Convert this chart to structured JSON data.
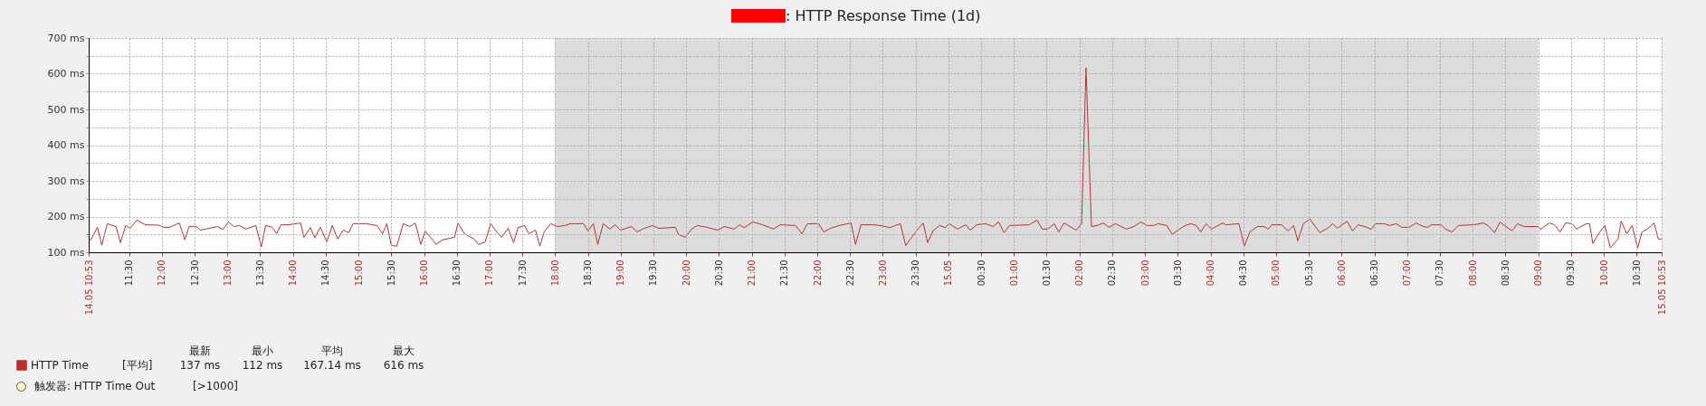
{
  "chart_data": {
    "type": "line",
    "title": ": HTTP Response Time (1d)",
    "x": [
      "--05-14T10:53",
      "--05-14T10:55",
      "--05-14T11:01",
      "--05-14T11:05",
      "--05-14T11:10",
      "--05-14T11:18",
      "--05-14T11:22",
      "--05-14T11:27",
      "--05-14T11:31",
      "--05-14T11:37",
      "--05-14T11:45",
      "--05-14T11:57",
      "--05-14T12:02",
      "--05-14T12:07",
      "--05-14T12:16",
      "--05-14T12:21",
      "--05-14T12:25",
      "--05-14T12:32",
      "--05-14T12:35",
      "--05-14T12:51",
      "--05-14T12:56",
      "--05-14T13:01",
      "--05-14T13:06",
      "--05-14T13:11",
      "--05-14T13:17",
      "--05-14T13:26",
      "--05-14T13:31",
      "--05-14T13:35",
      "--05-14T13:41",
      "--05-14T13:45",
      "--05-14T13:49",
      "--05-14T13:56",
      "--05-14T14:07",
      "--05-14T14:10",
      "--05-14T14:16",
      "--05-14T14:20",
      "--05-14T14:25",
      "--05-14T14:31",
      "--05-14T14:36",
      "--05-14T14:41",
      "--05-14T14:46",
      "--05-14T14:51",
      "--05-14T14:55",
      "--05-14T15:07",
      "--05-14T15:17",
      "--05-14T15:22",
      "--05-14T15:26",
      "--05-14T15:30",
      "--05-14T15:35",
      "--05-14T15:41",
      "--05-14T15:47",
      "--05-14T15:52",
      "--05-14T15:57",
      "--05-14T16:01",
      "--05-14T16:06",
      "--05-14T16:11",
      "--05-14T16:17",
      "--05-14T16:28",
      "--05-14T16:31",
      "--05-14T16:37",
      "--05-14T16:46",
      "--05-14T16:50",
      "--05-14T16:56",
      "--05-14T17:01",
      "--05-14T17:07",
      "--05-14T17:11",
      "--05-14T17:17",
      "--05-14T17:22",
      "--05-14T17:26",
      "--05-14T17:32",
      "--05-14T17:36",
      "--05-14T17:42",
      "--05-14T17:46",
      "--05-14T17:50",
      "--05-14T17:56",
      "--05-14T18:02",
      "--05-14T18:09",
      "--05-14T18:14",
      "--05-14T18:26",
      "--05-14T18:30",
      "--05-14T18:35",
      "--05-14T18:39",
      "--05-14T18:44",
      "--05-14T18:50",
      "--05-14T18:55",
      "--05-14T19:00",
      "--05-14T19:10",
      "--05-14T19:15",
      "--05-14T19:20",
      "--05-14T19:29",
      "--05-14T19:35",
      "--05-14T19:50",
      "--05-14T19:53",
      "--05-14T19:59",
      "--05-14T20:05",
      "--05-14T20:10",
      "--05-14T20:19",
      "--05-14T20:29",
      "--05-14T20:35",
      "--05-14T20:44",
      "--05-14T20:49",
      "--05-14T20:53",
      "--05-14T21:01",
      "--05-14T21:10",
      "--05-14T21:20",
      "--05-14T21:26",
      "--05-14T21:40",
      "--05-14T21:46",
      "--05-14T21:51",
      "--05-14T22:01",
      "--05-14T22:06",
      "--05-14T22:12",
      "--05-14T22:20",
      "--05-14T22:31",
      "--05-14T22:35",
      "--05-14T22:40",
      "--05-14T22:51",
      "--05-14T22:58",
      "--05-14T23:06",
      "--05-14T23:16",
      "--05-14T23:21",
      "--05-14T23:30",
      "--05-14T23:37",
      "--05-14T23:41",
      "--05-14T23:46",
      "--05-14T23:52",
      "--05-14T23:57",
      "--05-15T00:01",
      "--05-15T00:08",
      "--05-15T00:16",
      "--05-15T00:20",
      "--05-15T00:26",
      "--05-15T00:34",
      "--05-15T00:41",
      "--05-15T00:46",
      "--05-15T00:51",
      "--05-15T00:56",
      "--05-15T01:14",
      "--05-15T01:21",
      "--05-15T01:26",
      "--05-15T01:31",
      "--05-15T01:37",
      "--05-15T01:41",
      "--05-15T01:46",
      "--05-15T01:57",
      "--05-15T02:02",
      "--05-15T02:06",
      "--05-15T02:11",
      "--05-15T02:16",
      "--05-15T02:22",
      "--05-15T02:27",
      "--05-15T02:33",
      "--05-15T02:43",
      "--05-15T02:50",
      "--05-15T02:56",
      "--05-15T03:02",
      "--05-15T03:08",
      "--05-15T03:12",
      "--05-15T03:20",
      "--05-15T03:25",
      "--05-15T03:30",
      "--05-15T03:37",
      "--05-15T03:42",
      "--05-15T03:47",
      "--05-15T03:51",
      "--05-15T03:56",
      "--05-15T04:01",
      "--05-15T04:11",
      "--05-15T04:14",
      "--05-15T04:26",
      "--05-15T04:31",
      "--05-15T04:36",
      "--05-15T04:43",
      "--05-15T04:49",
      "--05-15T04:53",
      "--05-15T04:56",
      "--05-15T05:05",
      "--05-15T05:11",
      "--05-15T05:16",
      "--05-15T05:20",
      "--05-15T05:25",
      "--05-15T05:31",
      "--05-15T05:40",
      "--05-15T05:47",
      "--05-15T05:52",
      "--05-15T05:56",
      "--05-15T06:05",
      "--05-15T06:10",
      "--05-15T06:15",
      "--05-15T06:23",
      "--05-15T06:27",
      "--05-15T06:31",
      "--05-15T06:39",
      "--05-15T06:44",
      "--05-15T06:50",
      "--05-15T06:55",
      "--05-15T07:02",
      "--05-15T07:08",
      "--05-15T07:15",
      "--05-15T07:19",
      "--05-15T07:22",
      "--05-15T07:31",
      "--05-15T07:35",
      "--05-15T07:41",
      "--05-15T07:47",
      "--05-15T08:01",
      "--05-15T08:10",
      "--05-15T08:14",
      "--05-15T08:20",
      "--05-15T08:25",
      "--05-15T08:36",
      "--05-15T08:41",
      "--05-15T08:47",
      "--05-15T09:00",
      "--05-15T09:02",
      "--05-15T09:10",
      "--05-15T09:15",
      "--05-15T09:20",
      "--05-15T09:25",
      "--05-15T09:31",
      "--05-15T09:35",
      "--05-15T09:44",
      "--05-15T09:47",
      "--05-15T09:50",
      "--05-15T09:56",
      "--05-15T10:01",
      "--05-15T10:06",
      "--05-15T10:13",
      "--05-15T10:16",
      "--05-15T10:21",
      "--05-15T10:26",
      "--05-15T10:31",
      "--05-15T10:35",
      "--05-15T10:40",
      "--05-15T10:46",
      "--05-15T10:50",
      "--05-15T10:53"
    ],
    "series": [
      {
        "name": "HTTP Time",
        "color": "#b8312f",
        "values": [
          135,
          135,
          170,
          120,
          180,
          172,
          127,
          175,
          167,
          190,
          177,
          176,
          170,
          170,
          182,
          135,
          173,
          172,
          162,
          172,
          164,
          185,
          172,
          175,
          165,
          175,
          115,
          175,
          170,
          152,
          177,
          177,
          182,
          142,
          169,
          140,
          170,
          129,
          175,
          137,
          162,
          155,
          180,
          180,
          175,
          152,
          180,
          119,
          117,
          180,
          172,
          182,
          122,
          159,
          142,
          122,
          135,
          142,
          182,
          152,
          137,
          122,
          129,
          180,
          155,
          142,
          167,
          127,
          169,
          175,
          152,
          162,
          117,
          157,
          180,
          172,
          175,
          180,
          180,
          160,
          180,
          122,
          180,
          165,
          177,
          162,
          172,
          157,
          165,
          175,
          167,
          170,
          150,
          142,
          165,
          175,
          170,
          162,
          172,
          165,
          177,
          169,
          185,
          177,
          165,
          177,
          175,
          152,
          180,
          180,
          157,
          167,
          175,
          182,
          122,
          177,
          177,
          175,
          169,
          180,
          119,
          157,
          182,
          127,
          160,
          175,
          169,
          180,
          165,
          177,
          162,
          177,
          180,
          172,
          185,
          155,
          175,
          177,
          190,
          165,
          165,
          180,
          157,
          182,
          162,
          180,
          616,
          172,
          175,
          182,
          170,
          180,
          165,
          172,
          185,
          175,
          175,
          180,
          175,
          150,
          162,
          175,
          180,
          175,
          157,
          180,
          165,
          182,
          177,
          180,
          117,
          157,
          172,
          172,
          165,
          177,
          177,
          160,
          175,
          132,
          180,
          193,
          155,
          167,
          180,
          167,
          187,
          160,
          177,
          170,
          164,
          180,
          180,
          175,
          180,
          170,
          170,
          182,
          172,
          170,
          177,
          177,
          165,
          157,
          175,
          177,
          182,
          175,
          155,
          184,
          160,
          180,
          172,
          172,
          164,
          182,
          177,
          157,
          182,
          180,
          165,
          180,
          180,
          125,
          155,
          175,
          112,
          137,
          187,
          152,
          175,
          112,
          157,
          165,
          182,
          137,
          137
        ]
      }
    ],
    "xlim": [
      "--05-14T10:53",
      "--05-15T10:53"
    ],
    "xticks": [
      {
        "value": "--05-14T10:53",
        "label": "14.05 10:53"
      },
      {
        "value": "--05-14T11:30",
        "label": "11:30"
      },
      {
        "value": "--05-14T12:00",
        "label": "12:00"
      },
      {
        "value": "--05-14T12:30",
        "label": "12:30"
      },
      {
        "value": "--05-14T13:00",
        "label": "13:00"
      },
      {
        "value": "--05-14T13:30",
        "label": "13:30"
      },
      {
        "value": "--05-14T14:00",
        "label": "14:00"
      },
      {
        "value": "--05-14T14:30",
        "label": "14:30"
      },
      {
        "value": "--05-14T15:00",
        "label": "15:00"
      },
      {
        "value": "--05-14T15:30",
        "label": "15:30"
      },
      {
        "value": "--05-14T16:00",
        "label": "16:00"
      },
      {
        "value": "--05-14T16:30",
        "label": "16:30"
      },
      {
        "value": "--05-14T17:00",
        "label": "17:00"
      },
      {
        "value": "--05-14T17:30",
        "label": "17:30"
      },
      {
        "value": "--05-14T18:00",
        "label": "18:00"
      },
      {
        "value": "--05-14T18:30",
        "label": "18:30"
      },
      {
        "value": "--05-14T19:00",
        "label": "19:00"
      },
      {
        "value": "--05-14T19:30",
        "label": "19:30"
      },
      {
        "value": "--05-14T20:00",
        "label": "20:00"
      },
      {
        "value": "--05-14T20:30",
        "label": "20:30"
      },
      {
        "value": "--05-14T21:00",
        "label": "21:00"
      },
      {
        "value": "--05-14T21:30",
        "label": "21:30"
      },
      {
        "value": "--05-14T22:00",
        "label": "22:00"
      },
      {
        "value": "--05-14T22:30",
        "label": "22:30"
      },
      {
        "value": "--05-14T23:00",
        "label": "23:00"
      },
      {
        "value": "--05-14T23:30",
        "label": "23:30"
      },
      {
        "value": "--05-15T00:00",
        "label": "15.05"
      },
      {
        "value": "--05-15T00:30",
        "label": "00:30"
      },
      {
        "value": "--05-15T01:00",
        "label": "01:00"
      },
      {
        "value": "--05-15T01:30",
        "label": "01:30"
      },
      {
        "value": "--05-15T02:00",
        "label": "02:00"
      },
      {
        "value": "--05-15T02:30",
        "label": "02:30"
      },
      {
        "value": "--05-15T03:00",
        "label": "03:00"
      },
      {
        "value": "--05-15T03:30",
        "label": "03:30"
      },
      {
        "value": "--05-15T04:00",
        "label": "04:00"
      },
      {
        "value": "--05-15T04:30",
        "label": "04:30"
      },
      {
        "value": "--05-15T05:00",
        "label": "05:00"
      },
      {
        "value": "--05-15T05:30",
        "label": "05:30"
      },
      {
        "value": "--05-15T06:00",
        "label": "06:00"
      },
      {
        "value": "--05-15T06:30",
        "label": "06:30"
      },
      {
        "value": "--05-15T07:00",
        "label": "07:00"
      },
      {
        "value": "--05-15T07:30",
        "label": "07:30"
      },
      {
        "value": "--05-15T08:00",
        "label": "08:00"
      },
      {
        "value": "--05-15T08:30",
        "label": "08:30"
      },
      {
        "value": "--05-15T09:00",
        "label": "09:00"
      },
      {
        "value": "--05-15T09:30",
        "label": "09:30"
      },
      {
        "value": "--05-15T10:00",
        "label": "10:00"
      },
      {
        "value": "--05-15T10:30",
        "label": "10:30"
      },
      {
        "value": "--05-15T10:53",
        "label": "15.05 10:53"
      }
    ],
    "ylim": [
      100,
      700
    ],
    "yticks": [
      {
        "value": 100,
        "label": "100 ms"
      },
      {
        "value": 150,
        "label": null
      },
      {
        "value": 200,
        "label": "200 ms"
      },
      {
        "value": 250,
        "label": null
      },
      {
        "value": 300,
        "label": "300 ms"
      },
      {
        "value": 350,
        "label": null
      },
      {
        "value": 400,
        "label": "400 ms"
      },
      {
        "value": 450,
        "label": null
      },
      {
        "value": 500,
        "label": "500 ms"
      },
      {
        "value": 550,
        "label": null
      },
      {
        "value": 600,
        "label": "600 ms"
      },
      {
        "value": 650,
        "label": null
      },
      {
        "value": 700,
        "label": "700 ms"
      }
    ],
    "bands": [
      {
        "axis": "x",
        "from": "--05-14T18:00",
        "to": "--05-15T09:00",
        "color": "#dcdcdc"
      }
    ],
    "grid": true,
    "legend": "bottom left",
    "marker": "none",
    "line_style": "solid",
    "annotations": [
      "[平均]",
      "最新",
      "137 ms",
      "最小",
      "112 ms",
      "平均",
      "167.14 ms",
      "最大",
      "616 ms",
      "触发器: HTTP Time Out",
      "[>1000]"
    ]
  }
}
